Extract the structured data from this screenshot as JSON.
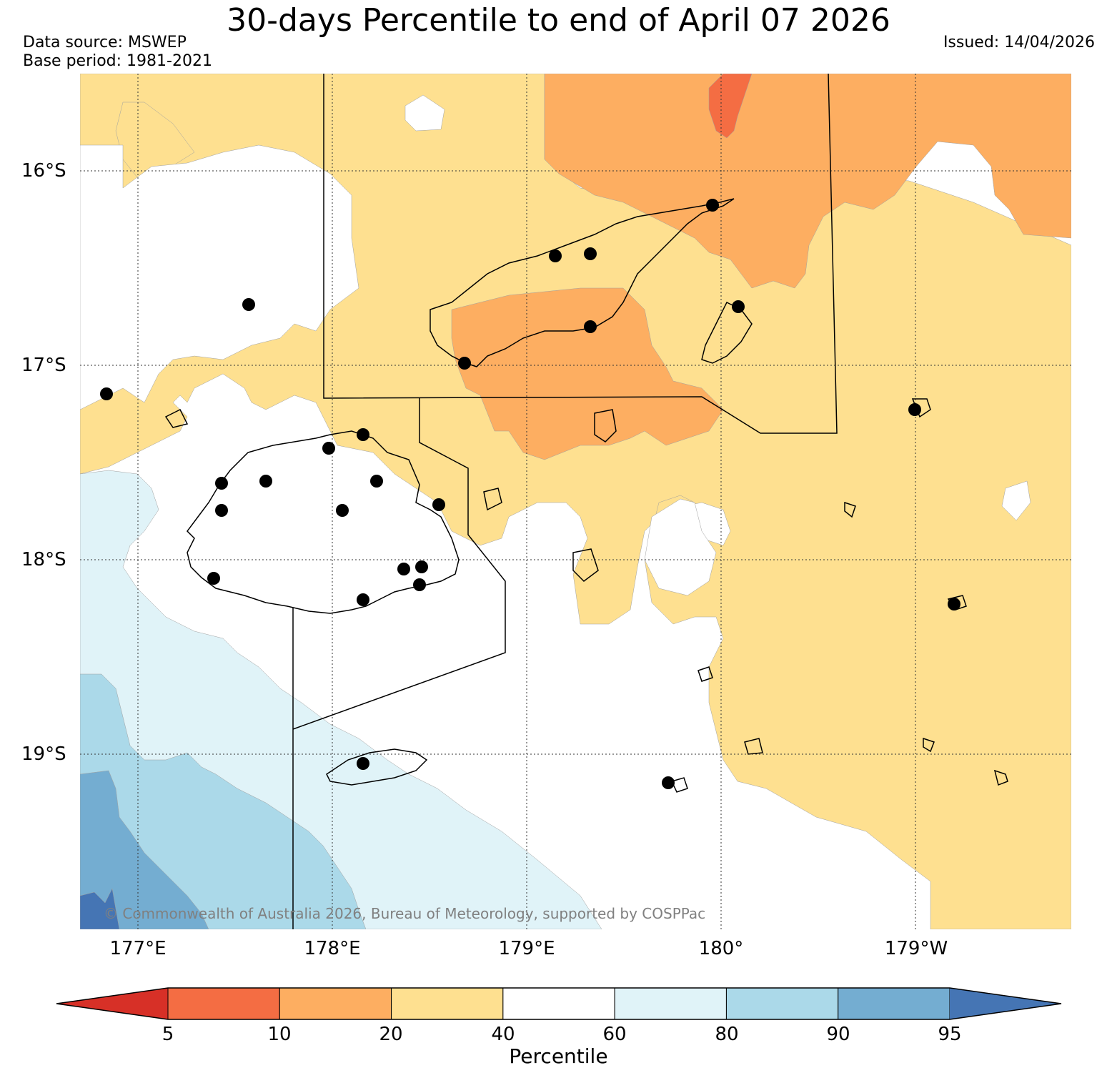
{
  "header": {
    "title": "30-days Percentile to end of April 07 2026",
    "data_source": "Data source: MSWEP",
    "base_period": "Base period: 1981-2021",
    "issued": "Issued: 14/04/2026"
  },
  "map": {
    "lat_labels": [
      "16°S",
      "17°S",
      "18°S",
      "19°S"
    ],
    "lon_labels": [
      "177°E",
      "178°E",
      "179°E",
      "180°",
      "179°W"
    ],
    "copyright": "© Commonwealth of Australia 2026, Bureau of Meteorology, supported by COSPPac"
  },
  "legend": {
    "ticks": [
      "5",
      "10",
      "20",
      "40",
      "60",
      "80",
      "90",
      "95"
    ],
    "label": "Percentile",
    "colors": [
      "#d73027",
      "#f46d43",
      "#fdae61",
      "#fee090",
      "#ffffff",
      "#e0f3f8",
      "#abd9e9",
      "#74add1",
      "#4575b4"
    ]
  }
}
